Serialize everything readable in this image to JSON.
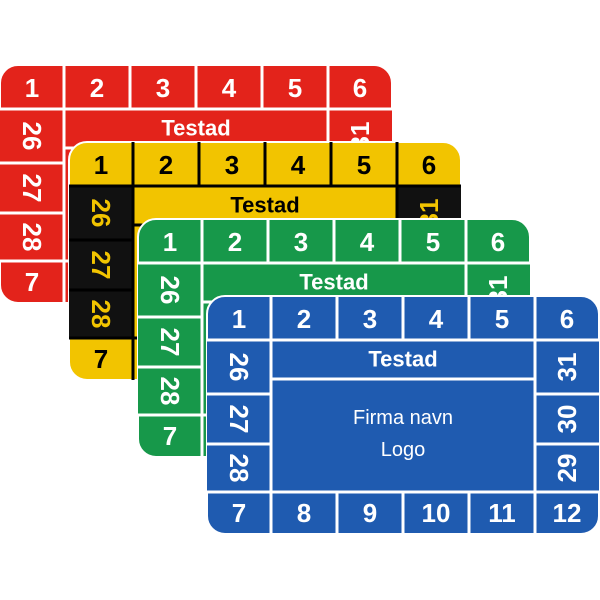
{
  "cards": [
    {
      "color": "#e3231b",
      "ink": "#ffffff",
      "side_color": "#e3231b",
      "side_ink": "#ffffff",
      "top": [
        "1",
        "2",
        "3",
        "4",
        "5",
        "6"
      ],
      "title": "Testad",
      "left": [
        "26",
        "27",
        "28"
      ],
      "corner": "7",
      "right": [
        "31"
      ]
    },
    {
      "color": "#f2c400",
      "ink": "#000000",
      "side_color": "#111111",
      "side_ink": "#f2c400",
      "top": [
        "1",
        "2",
        "3",
        "4",
        "5",
        "6"
      ],
      "title": "Testad",
      "left": [
        "26",
        "27",
        "28"
      ],
      "corner": "7",
      "right": [
        "31"
      ]
    },
    {
      "color": "#17984a",
      "ink": "#ffffff",
      "side_color": "#17984a",
      "side_ink": "#ffffff",
      "top": [
        "1",
        "2",
        "3",
        "4",
        "5",
        "6"
      ],
      "title": "Testad",
      "left": [
        "26",
        "27",
        "28"
      ],
      "corner": "7",
      "right": [
        "31"
      ]
    },
    {
      "color": "#1f5bb0",
      "ink": "#ffffff",
      "side_color": "#1f5bb0",
      "side_ink": "#ffffff",
      "top": [
        "1",
        "2",
        "3",
        "4",
        "5",
        "6"
      ],
      "title": "Testad",
      "left": [
        "26",
        "27",
        "28"
      ],
      "corner": "7",
      "right": [
        "31",
        "30",
        "29"
      ],
      "bottom": [
        "8",
        "9",
        "10",
        "11",
        "12"
      ],
      "body": [
        "Firma navn",
        "Logo"
      ]
    }
  ]
}
